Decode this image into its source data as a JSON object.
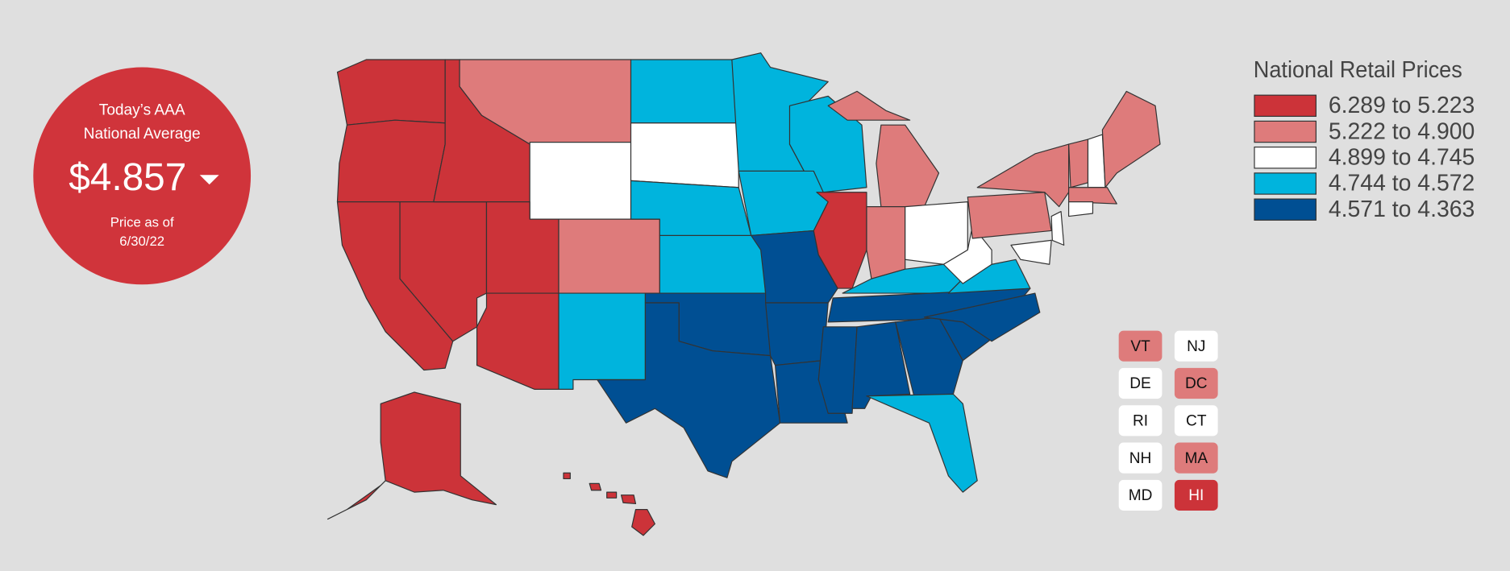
{
  "badge": {
    "line1": "Today’s AAA",
    "line2": "National Average",
    "price": "$4.857",
    "date_line1": "Price as of",
    "date_line2": "6/30/22",
    "color": "#d0343b"
  },
  "legend": {
    "title": "National Retail Prices",
    "items": [
      {
        "label": "6.289 to 5.223",
        "color": "#cc3339"
      },
      {
        "label": "5.222 to 4.900",
        "color": "#de7b7b"
      },
      {
        "label": "4.899 to 4.745",
        "color": "#ffffff"
      },
      {
        "label": "4.744 to 4.572",
        "color": "#00b4dd"
      },
      {
        "label": "4.571 to 4.363",
        "color": "#004f93"
      }
    ]
  },
  "state_boxes": [
    {
      "label": "VT",
      "color": "#de7b7b"
    },
    {
      "label": "NJ",
      "color": "#ffffff"
    },
    {
      "label": "DE",
      "color": "#ffffff"
    },
    {
      "label": "DC",
      "color": "#de7b7b"
    },
    {
      "label": "RI",
      "color": "#ffffff"
    },
    {
      "label": "CT",
      "color": "#ffffff"
    },
    {
      "label": "NH",
      "color": "#ffffff"
    },
    {
      "label": "MA",
      "color": "#de7b7b"
    },
    {
      "label": "MD",
      "color": "#ffffff"
    },
    {
      "label": "HI",
      "color": "#cc3339"
    }
  ]
}
